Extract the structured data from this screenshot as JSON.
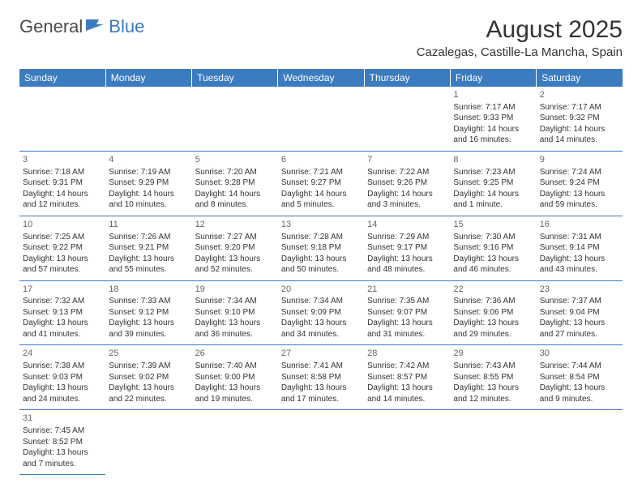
{
  "logo": {
    "part1": "General",
    "part2": "Blue"
  },
  "title": "August 2025",
  "location": "Cazalegas, Castille-La Mancha, Spain",
  "header_bg": "#3b7bbf",
  "header_text": "#ffffff",
  "divider_color": "#3b7bbf",
  "day_headers": [
    "Sunday",
    "Monday",
    "Tuesday",
    "Wednesday",
    "Thursday",
    "Friday",
    "Saturday"
  ],
  "weeks": [
    [
      null,
      null,
      null,
      null,
      null,
      {
        "n": "1",
        "sr": "7:17 AM",
        "ss": "9:33 PM",
        "dl": "14 hours and 16 minutes."
      },
      {
        "n": "2",
        "sr": "7:17 AM",
        "ss": "9:32 PM",
        "dl": "14 hours and 14 minutes."
      }
    ],
    [
      {
        "n": "3",
        "sr": "7:18 AM",
        "ss": "9:31 PM",
        "dl": "14 hours and 12 minutes."
      },
      {
        "n": "4",
        "sr": "7:19 AM",
        "ss": "9:29 PM",
        "dl": "14 hours and 10 minutes."
      },
      {
        "n": "5",
        "sr": "7:20 AM",
        "ss": "9:28 PM",
        "dl": "14 hours and 8 minutes."
      },
      {
        "n": "6",
        "sr": "7:21 AM",
        "ss": "9:27 PM",
        "dl": "14 hours and 5 minutes."
      },
      {
        "n": "7",
        "sr": "7:22 AM",
        "ss": "9:26 PM",
        "dl": "14 hours and 3 minutes."
      },
      {
        "n": "8",
        "sr": "7:23 AM",
        "ss": "9:25 PM",
        "dl": "14 hours and 1 minute."
      },
      {
        "n": "9",
        "sr": "7:24 AM",
        "ss": "9:24 PM",
        "dl": "13 hours and 59 minutes."
      }
    ],
    [
      {
        "n": "10",
        "sr": "7:25 AM",
        "ss": "9:22 PM",
        "dl": "13 hours and 57 minutes."
      },
      {
        "n": "11",
        "sr": "7:26 AM",
        "ss": "9:21 PM",
        "dl": "13 hours and 55 minutes."
      },
      {
        "n": "12",
        "sr": "7:27 AM",
        "ss": "9:20 PM",
        "dl": "13 hours and 52 minutes."
      },
      {
        "n": "13",
        "sr": "7:28 AM",
        "ss": "9:18 PM",
        "dl": "13 hours and 50 minutes."
      },
      {
        "n": "14",
        "sr": "7:29 AM",
        "ss": "9:17 PM",
        "dl": "13 hours and 48 minutes."
      },
      {
        "n": "15",
        "sr": "7:30 AM",
        "ss": "9:16 PM",
        "dl": "13 hours and 46 minutes."
      },
      {
        "n": "16",
        "sr": "7:31 AM",
        "ss": "9:14 PM",
        "dl": "13 hours and 43 minutes."
      }
    ],
    [
      {
        "n": "17",
        "sr": "7:32 AM",
        "ss": "9:13 PM",
        "dl": "13 hours and 41 minutes."
      },
      {
        "n": "18",
        "sr": "7:33 AM",
        "ss": "9:12 PM",
        "dl": "13 hours and 39 minutes."
      },
      {
        "n": "19",
        "sr": "7:34 AM",
        "ss": "9:10 PM",
        "dl": "13 hours and 36 minutes."
      },
      {
        "n": "20",
        "sr": "7:34 AM",
        "ss": "9:09 PM",
        "dl": "13 hours and 34 minutes."
      },
      {
        "n": "21",
        "sr": "7:35 AM",
        "ss": "9:07 PM",
        "dl": "13 hours and 31 minutes."
      },
      {
        "n": "22",
        "sr": "7:36 AM",
        "ss": "9:06 PM",
        "dl": "13 hours and 29 minutes."
      },
      {
        "n": "23",
        "sr": "7:37 AM",
        "ss": "9:04 PM",
        "dl": "13 hours and 27 minutes."
      }
    ],
    [
      {
        "n": "24",
        "sr": "7:38 AM",
        "ss": "9:03 PM",
        "dl": "13 hours and 24 minutes."
      },
      {
        "n": "25",
        "sr": "7:39 AM",
        "ss": "9:02 PM",
        "dl": "13 hours and 22 minutes."
      },
      {
        "n": "26",
        "sr": "7:40 AM",
        "ss": "9:00 PM",
        "dl": "13 hours and 19 minutes."
      },
      {
        "n": "27",
        "sr": "7:41 AM",
        "ss": "8:58 PM",
        "dl": "13 hours and 17 minutes."
      },
      {
        "n": "28",
        "sr": "7:42 AM",
        "ss": "8:57 PM",
        "dl": "13 hours and 14 minutes."
      },
      {
        "n": "29",
        "sr": "7:43 AM",
        "ss": "8:55 PM",
        "dl": "13 hours and 12 minutes."
      },
      {
        "n": "30",
        "sr": "7:44 AM",
        "ss": "8:54 PM",
        "dl": "13 hours and 9 minutes."
      }
    ],
    [
      {
        "n": "31",
        "sr": "7:45 AM",
        "ss": "8:52 PM",
        "dl": "13 hours and 7 minutes."
      },
      null,
      null,
      null,
      null,
      null,
      null
    ]
  ],
  "labels": {
    "sunrise": "Sunrise: ",
    "sunset": "Sunset: ",
    "daylight": "Daylight: "
  }
}
